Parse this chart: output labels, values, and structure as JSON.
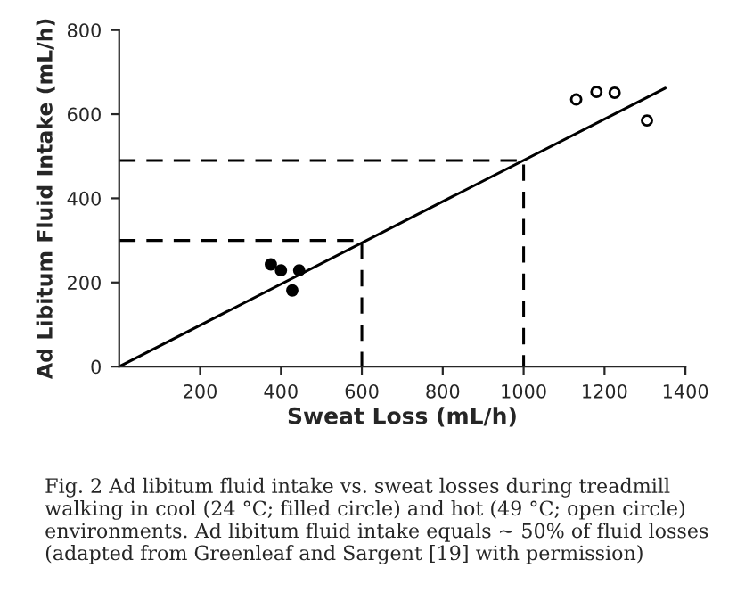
{
  "chart_data": {
    "type": "scatter",
    "xlabel": "Sweat Loss (mL/h)",
    "ylabel": "Ad Libitum Fluid Intake (mL/h)",
    "series": [
      {
        "color": "#000000",
        "marker": "circle",
        "x": [
          375,
          400,
          428,
          445
        ],
        "values": [
          243,
          229,
          181,
          229
        ]
      },
      {
        "color": "#ffffff",
        "marker": "circle",
        "x": [
          1130,
          1180,
          1225,
          1305
        ],
        "values": [
          635,
          653,
          651,
          585
        ]
      },
      {
        "type": "line",
        "color": "#000000",
        "line_style": "solid",
        "x": [
          0,
          1350
        ],
        "values": [
          0,
          662
        ]
      },
      {
        "type": "line",
        "color": "#000000",
        "line_style": "dashed",
        "x": [
          0,
          1000,
          1000
        ],
        "values": [
          490,
          490,
          0
        ]
      },
      {
        "type": "line",
        "color": "#000000",
        "line_style": "dashed",
        "x": [
          0,
          600,
          600
        ],
        "values": [
          300,
          300,
          0
        ]
      }
    ],
    "xlim": [
      0,
      1400
    ],
    "xticks": [
      200,
      400,
      600,
      800,
      1000,
      1200,
      1400
    ],
    "ylim": [
      0,
      800
    ],
    "yticks": [
      0,
      200,
      400,
      600,
      800
    ],
    "grid": false,
    "legend": false,
    "annotations": [
      "Fig. 2 Ad libitum fluid intake vs. sweat losses during treadmill walking in cool (24 °C; filled circle) and hot (49 °C; open circle) environments. Ad libitum fluid intake equals ∼ 50% of fluid losses (adapted from Greenleaf and Sargent [19] with permission)"
    ]
  }
}
